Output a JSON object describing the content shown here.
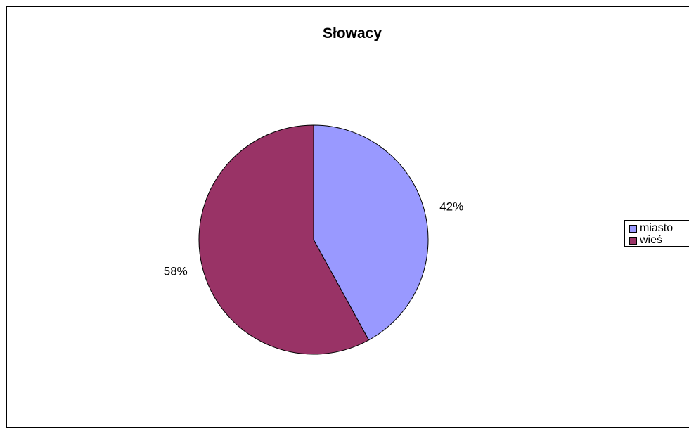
{
  "chart_data": {
    "type": "pie",
    "title": "Słowacy",
    "categories": [
      "miasto",
      "wieś"
    ],
    "values": [
      42,
      58
    ],
    "labels": [
      "42%",
      "58%"
    ],
    "colors": [
      "#9999FF",
      "#993366"
    ],
    "legend_position": "right"
  }
}
